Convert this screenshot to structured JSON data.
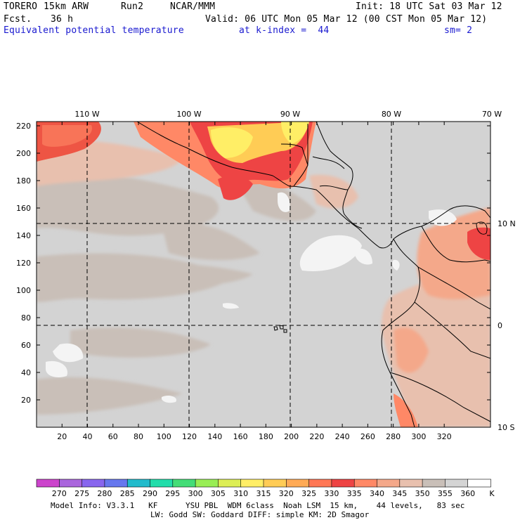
{
  "header": {
    "line1": {
      "model": "TORERO",
      "res": "15km ARW",
      "run": "Run2",
      "org": "NCAR/MMM",
      "init": "Init: 18 UTC Sat 03 Mar 12"
    },
    "line2": {
      "fcst_label": "Fcst.",
      "fcst_value": "36 h",
      "valid": "Valid: 06 UTC Mon 05 Mar 12 (00 CST Mon 05 Mar 12)"
    },
    "line3": {
      "field": "Equivalent potential temperature",
      "level": "at k-index =  44",
      "smooth": "sm= 2"
    }
  },
  "map": {
    "lon_labels": [
      "110 W",
      "100 W",
      "90 W",
      "80 W",
      "70 W"
    ],
    "lat_labels": [
      "10 N",
      "0",
      "10 S"
    ],
    "x_ticks": [
      "20",
      "40",
      "60",
      "80",
      "100",
      "120",
      "140",
      "160",
      "180",
      "200",
      "220",
      "240",
      "260",
      "280",
      "300",
      "320"
    ],
    "y_ticks": [
      "20",
      "40",
      "60",
      "80",
      "100",
      "120",
      "140",
      "160",
      "180",
      "200",
      "220"
    ],
    "gridlines": "dashed"
  },
  "colorbar": {
    "labels": [
      "270",
      "275",
      "280",
      "285",
      "290",
      "295",
      "300",
      "305",
      "310",
      "315",
      "320",
      "325",
      "330",
      "335",
      "340",
      "345",
      "350",
      "355",
      "360"
    ],
    "unit": "K",
    "colors": [
      "#cc44cc",
      "#aa66dd",
      "#8866ee",
      "#6677ee",
      "#22bbcc",
      "#22ddaa",
      "#44dd77",
      "#99ee55",
      "#ddee55",
      "#ffee66",
      "#ffcc55",
      "#ffaa55",
      "#ff7755",
      "#ee4444",
      "#ff8866",
      "#f4a88a",
      "#e8c0ae",
      "#c9bfb8",
      "#d4d4d4",
      "#ffffff"
    ]
  },
  "footer": {
    "line1": "Model Info: V3.3.1   KF      YSU PBL  WDM 6class  Noah LSM  15 km,    44 levels,   83 sec",
    "line2": "LW: Godd SW: Goddard DIFF: simple KM: 2D Smagor"
  }
}
